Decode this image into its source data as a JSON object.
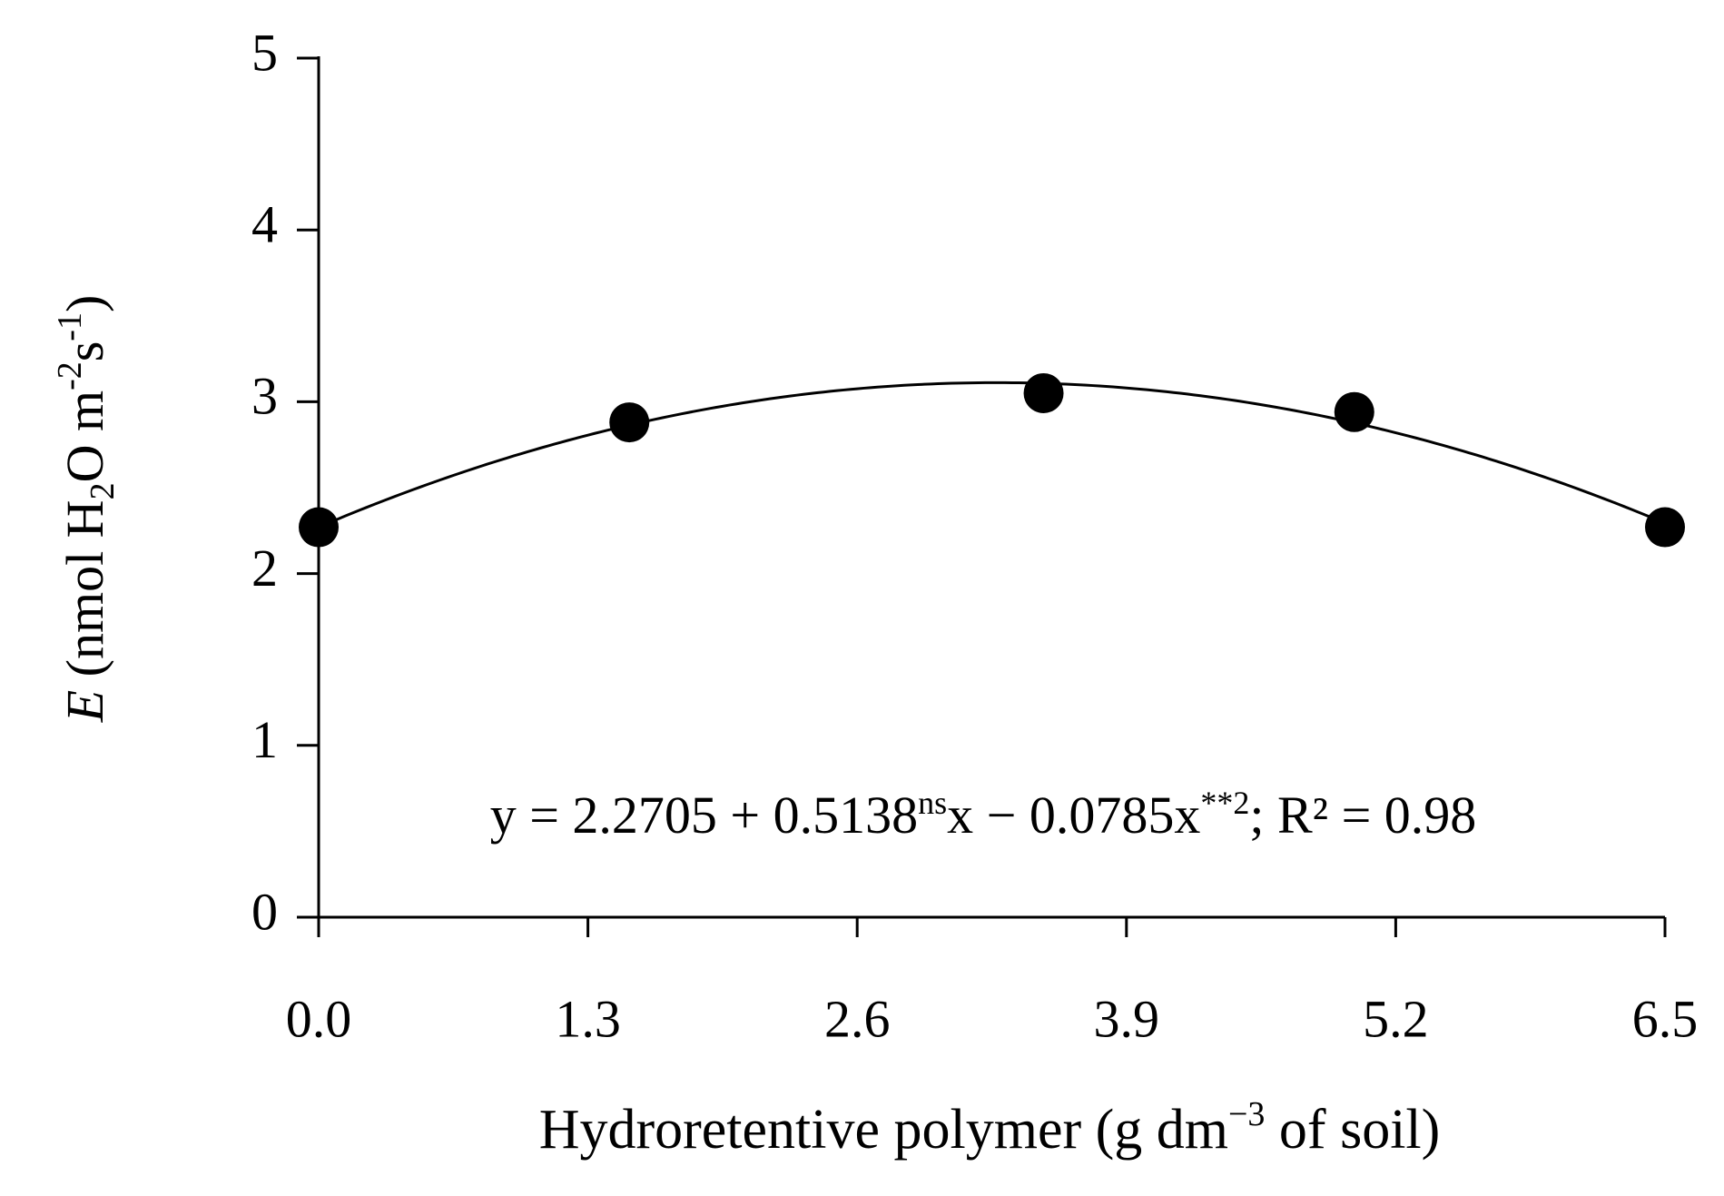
{
  "chart_data": {
    "type": "scatter",
    "x": [
      0,
      1.5,
      3.5,
      5,
      6.5
    ],
    "series": [
      {
        "color": "#000000",
        "values": [
          2.27,
          2.88,
          3.05,
          2.94,
          2.27
        ],
        "errors": [
          0.03,
          0.03,
          0.06,
          0.07,
          0.03
        ]
      }
    ],
    "fit": {
      "coefficients": [
        2.2705,
        0.5138,
        -0.0785
      ],
      "color": "#000000"
    },
    "annotation": [
      "y = 2.2705 + 0.5138",
      "ns",
      "x − 0.0785x",
      "**2",
      "; R² = 0.98"
    ],
    "x_label": [
      "Hydroretentive polymer (g dm",
      "−3",
      " of soil)"
    ],
    "y_label": [
      "E",
      " (nmol H",
      "2",
      "O m",
      "-2",
      "s",
      "-1",
      ")"
    ],
    "xlim": [
      0,
      6.5
    ],
    "xticks": [
      {
        "value": 0,
        "label": "0.0"
      },
      1.3,
      2.6,
      3.9,
      5.2,
      6.5
    ],
    "ylim": [
      0,
      5
    ],
    "yticks": [
      0,
      1,
      2,
      3,
      4,
      5
    ],
    "grid": false
  }
}
